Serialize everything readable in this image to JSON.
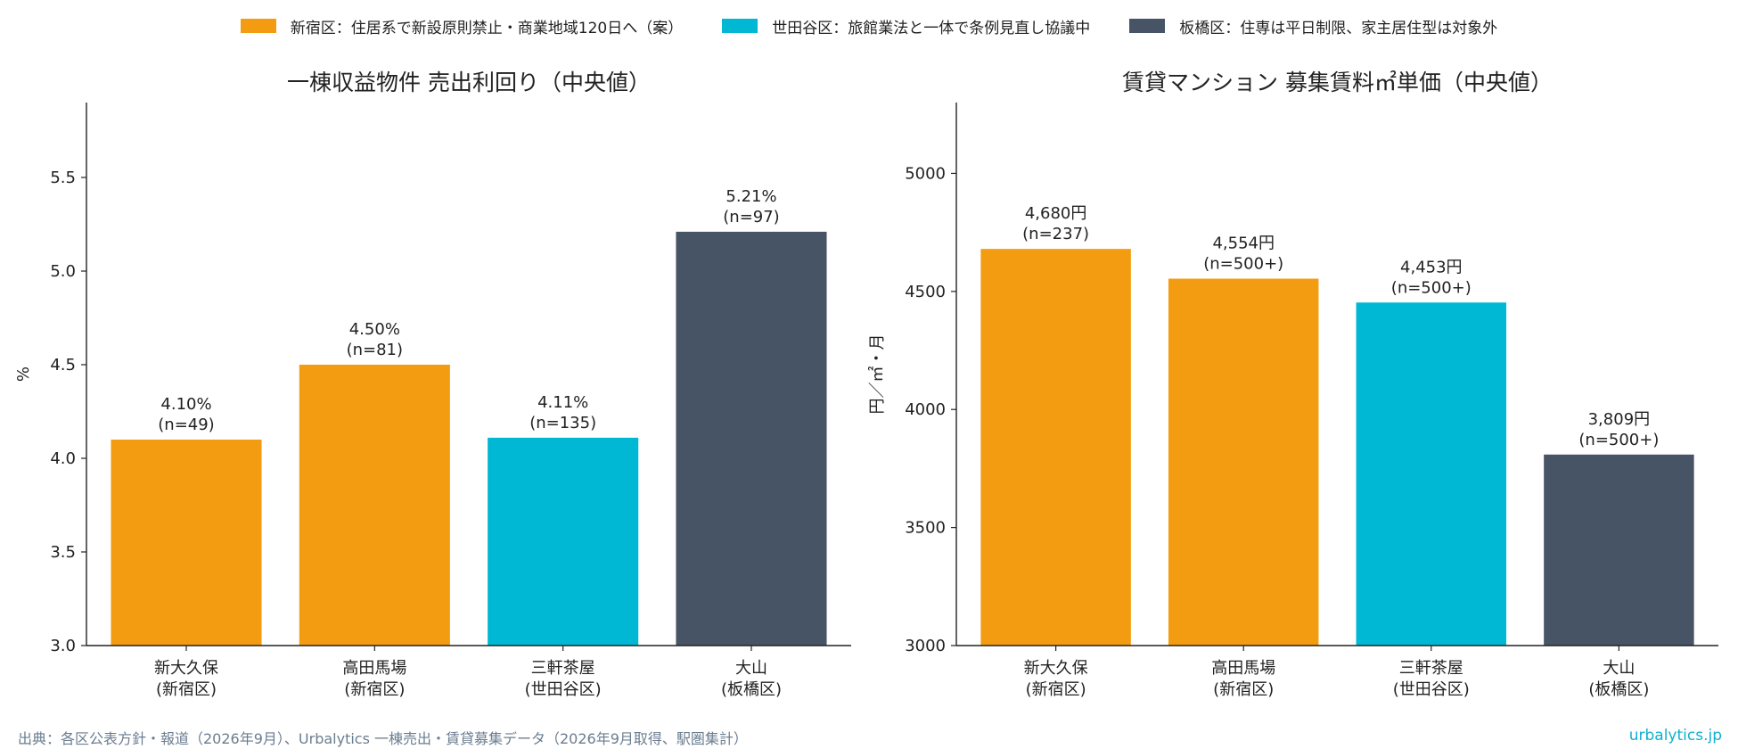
{
  "legend": [
    {
      "label": "新宿区：住居系で新設原則禁止・商業地域120日へ（案）",
      "color": "#f39c12"
    },
    {
      "label": "世田谷区：旅館業法と一体で条例見直し協議中",
      "color": "#00b8d4"
    },
    {
      "label": "板橋区：住専は平日制限、家主居住型は対象外",
      "color": "#465466"
    }
  ],
  "chart_data": [
    {
      "type": "bar",
      "title": "一棟収益物件 売出利回り（中央値）",
      "xlabel": "",
      "ylabel": "%",
      "ylim": [
        3.0,
        5.9
      ],
      "yticks": [
        3.0,
        3.5,
        4.0,
        4.5,
        5.0,
        5.5
      ],
      "ytick_labels": [
        "3.0",
        "3.5",
        "4.0",
        "4.5",
        "5.0",
        "5.5"
      ],
      "categories": [
        [
          "新大久保",
          "(新宿区)"
        ],
        [
          "高田馬場",
          "(新宿区)"
        ],
        [
          "三軒茶屋",
          "(世田谷区)"
        ],
        [
          "大山",
          "(板橋区)"
        ]
      ],
      "values": [
        4.1,
        4.5,
        4.11,
        5.21
      ],
      "colors": [
        "#f39c12",
        "#f39c12",
        "#00b8d4",
        "#465466"
      ],
      "data_labels": [
        [
          "4.10%",
          "(n=49)"
        ],
        [
          "4.50%",
          "(n=81)"
        ],
        [
          "4.11%",
          "(n=135)"
        ],
        [
          "5.21%",
          "(n=97)"
        ]
      ],
      "grid": false
    },
    {
      "type": "bar",
      "title": "賃貸マンション 募集賃料㎡単価（中央値）",
      "xlabel": "",
      "ylabel": "円／㎡・月",
      "ylim": [
        3000,
        5300
      ],
      "yticks": [
        3000,
        3500,
        4000,
        4500,
        5000
      ],
      "ytick_labels": [
        "3000",
        "3500",
        "4000",
        "4500",
        "5000"
      ],
      "categories": [
        [
          "新大久保",
          "(新宿区)"
        ],
        [
          "高田馬場",
          "(新宿区)"
        ],
        [
          "三軒茶屋",
          "(世田谷区)"
        ],
        [
          "大山",
          "(板橋区)"
        ]
      ],
      "values": [
        4680,
        4554,
        4453,
        3809
      ],
      "colors": [
        "#f39c12",
        "#f39c12",
        "#00b8d4",
        "#465466"
      ],
      "data_labels": [
        [
          "4,680円",
          "(n=237)"
        ],
        [
          "4,554円",
          "(n=500+)"
        ],
        [
          "4,453円",
          "(n=500+)"
        ],
        [
          "3,809円",
          "(n=500+)"
        ]
      ],
      "grid": false
    }
  ],
  "footer": {
    "source": "出典：各区公表方針・報道（2026年9月）、Urbalytics 一棟売出・賃貸募集データ（2026年9月取得、駅圏集計）",
    "brand": "urbalytics.jp"
  }
}
